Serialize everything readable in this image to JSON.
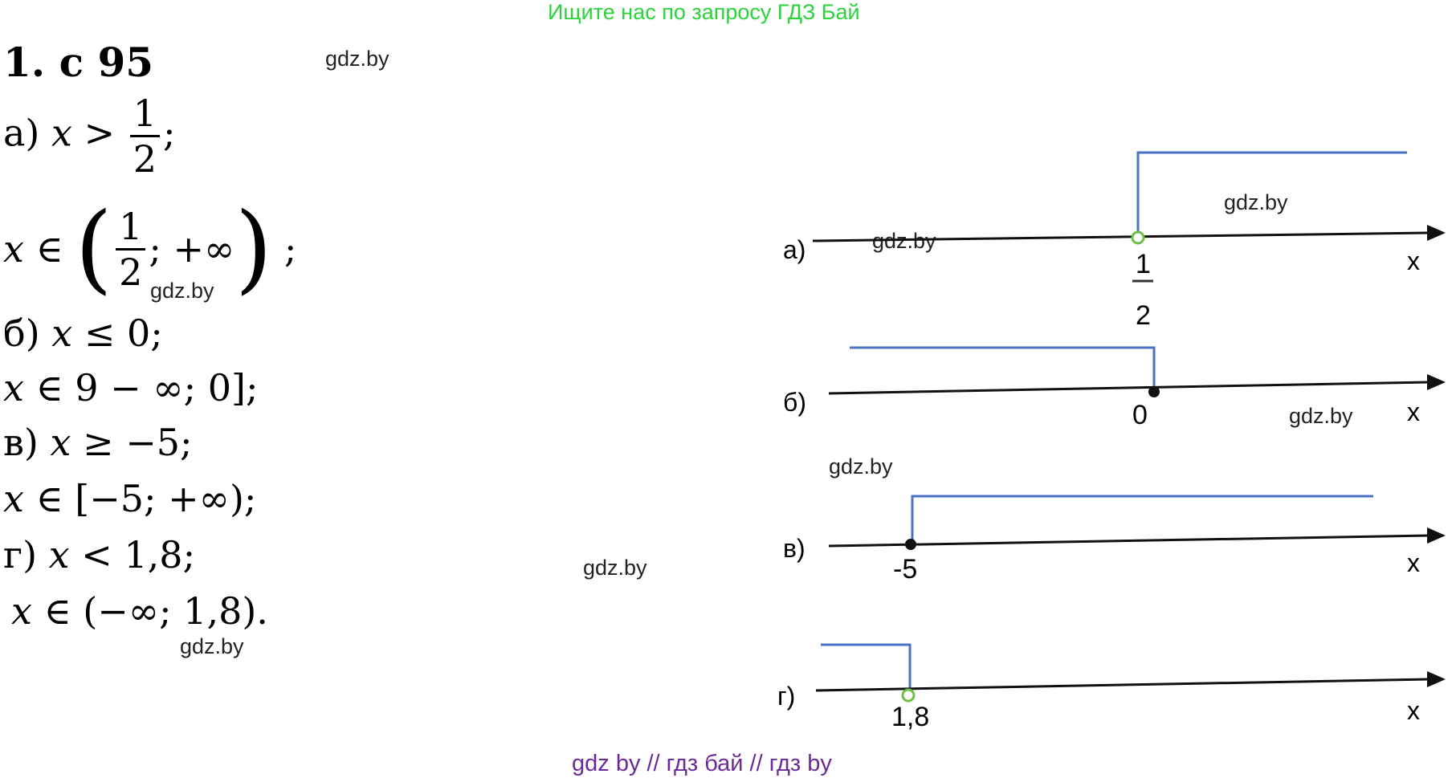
{
  "header": {
    "link": "Ищите нас по запросу ГДЗ Бай"
  },
  "title": "1. с 95",
  "watermark": "gdz.by",
  "solution": {
    "a": {
      "label": "а)",
      "ineq_var": "x",
      "ineq_op": ">",
      "frac_num": "1",
      "frac_den": "2",
      "tail": ";",
      "int_var": "x",
      "int_in": "∈",
      "int_open": "(",
      "int_num": "1",
      "int_den": "2",
      "int_rest": "; +∞",
      "int_close": ")",
      "int_tail": ";"
    },
    "b": {
      "label": "б)",
      "ineq": "≤ 0;",
      "var": "x",
      "int_var": "x",
      "int_text": "∈ 9 − ∞; 0];"
    },
    "v": {
      "label": "в)",
      "ineq": "≥ −5;",
      "var": "x",
      "int_var": "x",
      "int_text": "∈ [−5; +∞);"
    },
    "g": {
      "label": "г)",
      "ineq": "< 1,8;",
      "var": "x",
      "int_var": "x",
      "int_text": "∈ (−∞; 1,8)."
    }
  },
  "number_lines": {
    "axis_label": "x",
    "a": {
      "label": "а)",
      "point_num": "1",
      "point_den": "2",
      "point_type": "open",
      "direction": "right"
    },
    "b": {
      "label": "б)",
      "point": "0",
      "point_type": "closed",
      "direction": "left"
    },
    "v": {
      "label": "в)",
      "point": "-5",
      "point_type": "closed",
      "direction": "right"
    },
    "g": {
      "label": "г)",
      "point": "1,8",
      "point_type": "open",
      "direction": "left"
    }
  },
  "colors": {
    "shade": "#4a72c4",
    "header": "#2bd43a",
    "footer": "#6a2a9a",
    "open_point": "#6cbf4a"
  },
  "footer": {
    "links": "gdz by  //  гдз бай  //  гдз by"
  }
}
